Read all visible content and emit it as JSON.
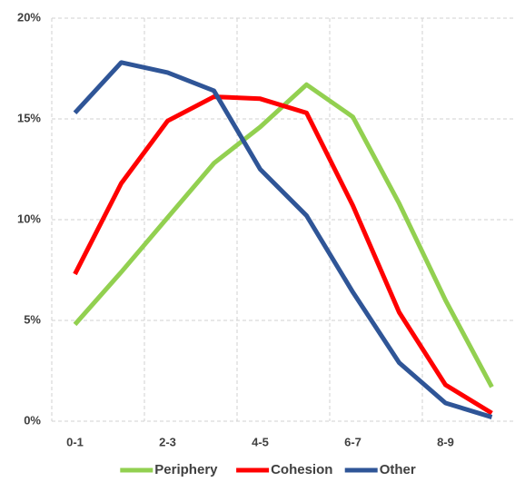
{
  "chart_data": {
    "type": "line",
    "categories": [
      "0-1",
      null,
      "2-3",
      null,
      "4-5",
      null,
      "6-7",
      null,
      "8-9",
      null
    ],
    "series": [
      {
        "name": "Periphery",
        "color": "#92d050",
        "values": [
          4.8,
          7.4,
          10.1,
          12.8,
          14.6,
          16.7,
          15.1,
          10.8,
          6.0,
          1.7
        ]
      },
      {
        "name": "Cohesion",
        "color": "#ff0000",
        "values": [
          7.3,
          11.8,
          14.9,
          16.1,
          16.0,
          15.3,
          10.7,
          5.4,
          1.8,
          0.4
        ]
      },
      {
        "name": "Other",
        "color": "#2f5597",
        "values": [
          15.3,
          17.8,
          17.3,
          16.4,
          12.5,
          10.2,
          6.4,
          2.9,
          0.9,
          0.2
        ]
      }
    ],
    "ylim": [
      0,
      20
    ],
    "yticks": [
      {
        "value": 0,
        "label": "0%"
      },
      {
        "value": 5,
        "label": "5%"
      },
      {
        "value": 10,
        "label": "10%"
      },
      {
        "value": 15,
        "label": "15%"
      },
      {
        "value": 20,
        "label": "20%"
      }
    ],
    "grid": true,
    "legend": "bottom"
  }
}
